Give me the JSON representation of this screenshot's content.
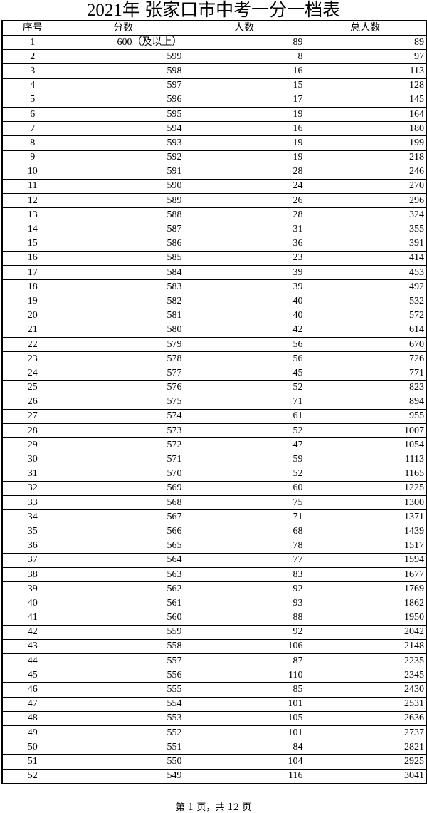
{
  "title": "2021年 张家口市中考一分一档表",
  "table": {
    "headers": [
      "序号",
      "分数",
      "人数",
      "总人数"
    ],
    "rows": [
      [
        "1",
        "600（及以上）",
        "89",
        "89"
      ],
      [
        "2",
        "599",
        "8",
        "97"
      ],
      [
        "3",
        "598",
        "16",
        "113"
      ],
      [
        "4",
        "597",
        "15",
        "128"
      ],
      [
        "5",
        "596",
        "17",
        "145"
      ],
      [
        "6",
        "595",
        "19",
        "164"
      ],
      [
        "7",
        "594",
        "16",
        "180"
      ],
      [
        "8",
        "593",
        "19",
        "199"
      ],
      [
        "9",
        "592",
        "19",
        "218"
      ],
      [
        "10",
        "591",
        "28",
        "246"
      ],
      [
        "11",
        "590",
        "24",
        "270"
      ],
      [
        "12",
        "589",
        "26",
        "296"
      ],
      [
        "13",
        "588",
        "28",
        "324"
      ],
      [
        "14",
        "587",
        "31",
        "355"
      ],
      [
        "15",
        "586",
        "36",
        "391"
      ],
      [
        "16",
        "585",
        "23",
        "414"
      ],
      [
        "17",
        "584",
        "39",
        "453"
      ],
      [
        "18",
        "583",
        "39",
        "492"
      ],
      [
        "19",
        "582",
        "40",
        "532"
      ],
      [
        "20",
        "581",
        "40",
        "572"
      ],
      [
        "21",
        "580",
        "42",
        "614"
      ],
      [
        "22",
        "579",
        "56",
        "670"
      ],
      [
        "23",
        "578",
        "56",
        "726"
      ],
      [
        "24",
        "577",
        "45",
        "771"
      ],
      [
        "25",
        "576",
        "52",
        "823"
      ],
      [
        "26",
        "575",
        "71",
        "894"
      ],
      [
        "27",
        "574",
        "61",
        "955"
      ],
      [
        "28",
        "573",
        "52",
        "1007"
      ],
      [
        "29",
        "572",
        "47",
        "1054"
      ],
      [
        "30",
        "571",
        "59",
        "1113"
      ],
      [
        "31",
        "570",
        "52",
        "1165"
      ],
      [
        "32",
        "569",
        "60",
        "1225"
      ],
      [
        "33",
        "568",
        "75",
        "1300"
      ],
      [
        "34",
        "567",
        "71",
        "1371"
      ],
      [
        "35",
        "566",
        "68",
        "1439"
      ],
      [
        "36",
        "565",
        "78",
        "1517"
      ],
      [
        "37",
        "564",
        "77",
        "1594"
      ],
      [
        "38",
        "563",
        "83",
        "1677"
      ],
      [
        "39",
        "562",
        "92",
        "1769"
      ],
      [
        "40",
        "561",
        "93",
        "1862"
      ],
      [
        "41",
        "560",
        "88",
        "1950"
      ],
      [
        "42",
        "559",
        "92",
        "2042"
      ],
      [
        "43",
        "558",
        "106",
        "2148"
      ],
      [
        "44",
        "557",
        "87",
        "2235"
      ],
      [
        "45",
        "556",
        "110",
        "2345"
      ],
      [
        "46",
        "555",
        "85",
        "2430"
      ],
      [
        "47",
        "554",
        "101",
        "2531"
      ],
      [
        "48",
        "553",
        "105",
        "2636"
      ],
      [
        "49",
        "552",
        "101",
        "2737"
      ],
      [
        "50",
        "551",
        "84",
        "2821"
      ],
      [
        "51",
        "550",
        "104",
        "2925"
      ],
      [
        "52",
        "549",
        "116",
        "3041"
      ]
    ]
  },
  "footer": "第 1 页，共 12 页"
}
